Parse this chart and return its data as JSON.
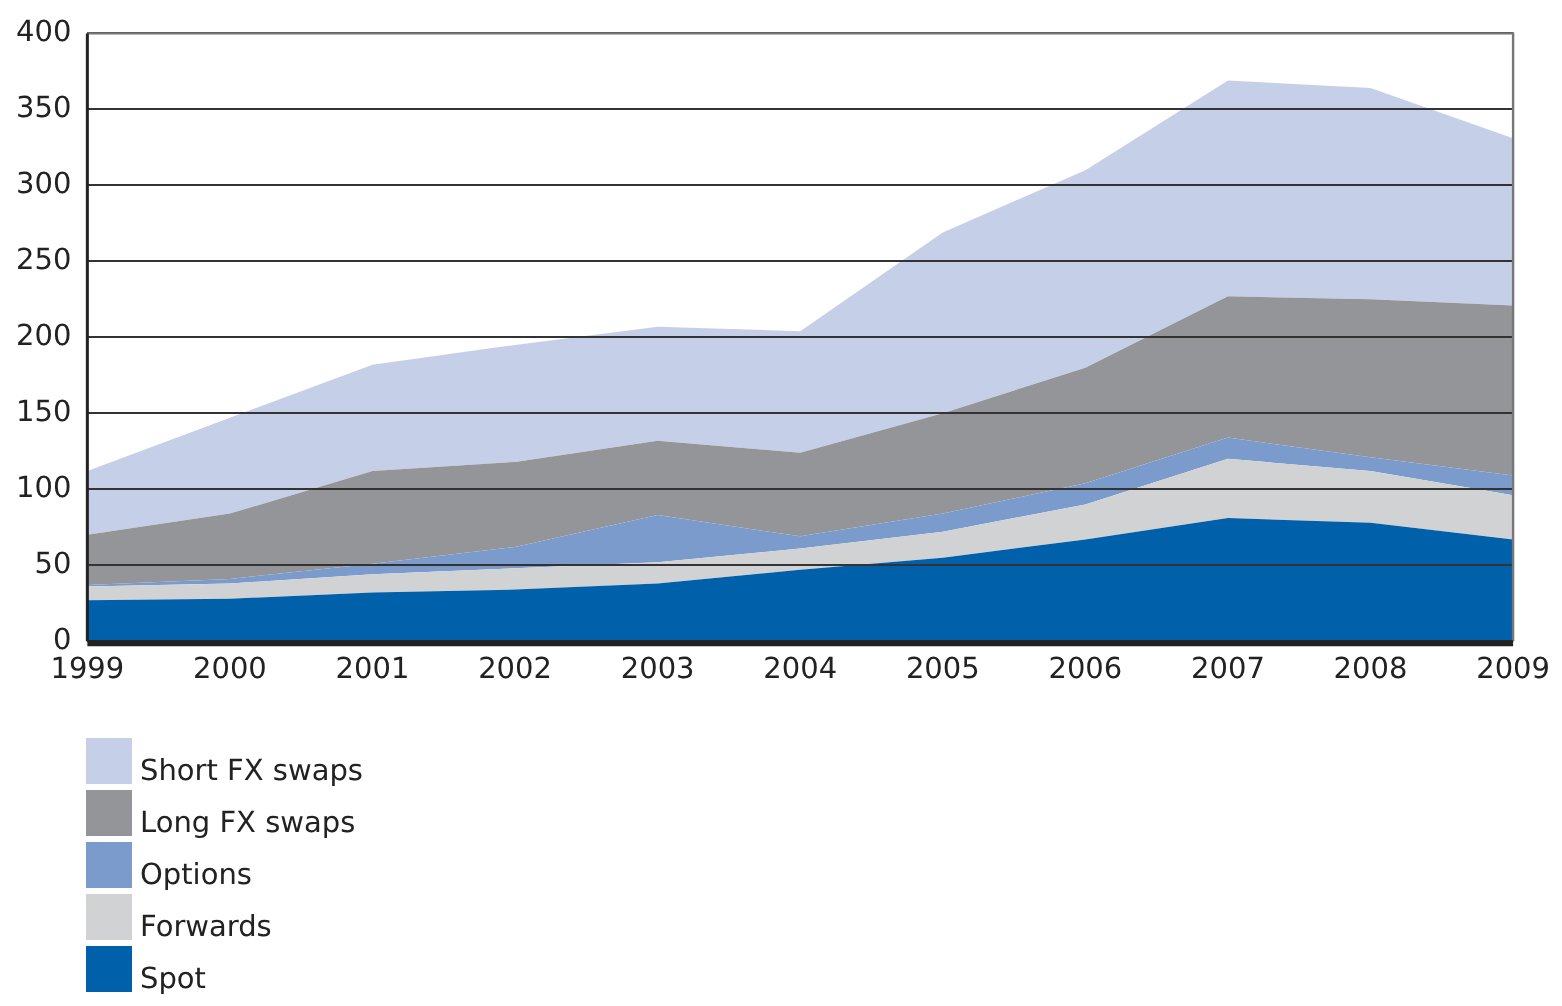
{
  "chart_data": {
    "type": "area",
    "stacked": true,
    "categories": [
      "1999",
      "2000",
      "2001",
      "2002",
      "2003",
      "2004",
      "2005",
      "2006",
      "2007",
      "2008",
      "2009"
    ],
    "series": [
      {
        "name": "Spot",
        "color": "#0060a9",
        "values": [
          27,
          28,
          32,
          34,
          38,
          47,
          55,
          67,
          81,
          78,
          67
        ]
      },
      {
        "name": "Forwards",
        "color": "#d1d2d4",
        "values": [
          9,
          10,
          12,
          14,
          14,
          14,
          17,
          23,
          39,
          34,
          29
        ]
      },
      {
        "name": "Options",
        "color": "#7b9bcc",
        "values": [
          1,
          3,
          7,
          14,
          31,
          8,
          12,
          14,
          14,
          9,
          13
        ]
      },
      {
        "name": "Long FX swaps",
        "color": "#949599",
        "values": [
          33,
          43,
          61,
          56,
          49,
          55,
          66,
          76,
          93,
          104,
          112
        ]
      },
      {
        "name": "Short FX swaps",
        "color": "#c5d0e8",
        "values": [
          42,
          63,
          70,
          77,
          75,
          80,
          119,
          130,
          142,
          139,
          110
        ]
      }
    ],
    "ylim": [
      0,
      400
    ],
    "yticks": [
      0,
      50,
      100,
      150,
      200,
      250,
      300,
      350,
      400
    ],
    "grid": "y",
    "legend": "bottom left"
  }
}
